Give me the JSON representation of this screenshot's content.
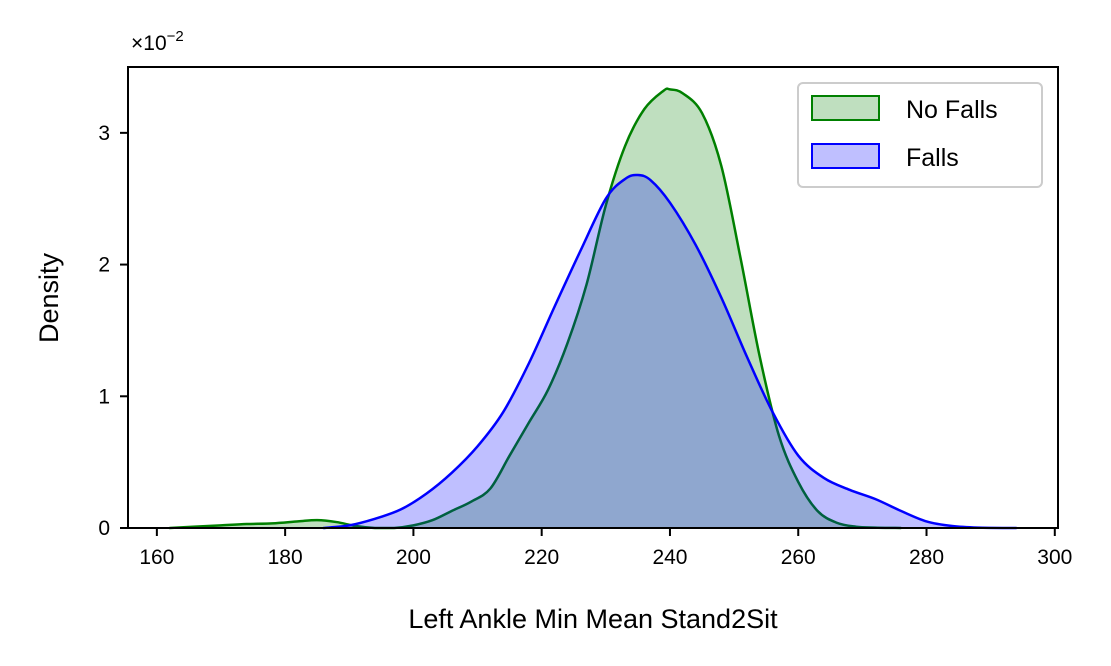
{
  "chart_data": {
    "type": "area",
    "xlabel": "Left Ankle Min Mean Stand2Sit",
    "ylabel": "Density",
    "y_multiplier_base": "×10",
    "y_multiplier_exp": "−2",
    "xlim": [
      155.5,
      300.5
    ],
    "ylim": [
      0,
      3.5
    ],
    "x_ticks": [
      160,
      180,
      200,
      220,
      240,
      260,
      280,
      300
    ],
    "y_ticks": [
      0,
      1,
      2,
      3
    ],
    "x_tick_labels": [
      "160",
      "180",
      "200",
      "220",
      "240",
      "260",
      "280",
      "300"
    ],
    "y_tick_labels": [
      "0",
      "1",
      "2",
      "3"
    ],
    "grid": false,
    "legend_position": "upper right",
    "series": [
      {
        "name": "No Falls",
        "line_color": "#008000",
        "fill_color": "#008000",
        "fill_opacity": 0.25,
        "x": [
          162,
          166,
          170,
          174,
          178,
          182,
          185,
          188,
          191,
          194,
          197,
          200,
          203,
          206,
          209,
          212,
          215,
          218,
          221,
          224,
          227,
          230,
          233,
          236,
          239,
          240,
          242,
          245,
          248,
          251,
          254,
          257,
          260,
          263,
          266,
          269,
          272,
          276
        ],
        "y": [
          0,
          0.01,
          0.02,
          0.03,
          0.035,
          0.05,
          0.06,
          0.045,
          0.015,
          0.0,
          0.0,
          0.02,
          0.06,
          0.13,
          0.2,
          0.3,
          0.55,
          0.8,
          1.05,
          1.4,
          1.85,
          2.45,
          2.9,
          3.18,
          3.32,
          3.33,
          3.3,
          3.15,
          2.75,
          2.05,
          1.3,
          0.7,
          0.35,
          0.13,
          0.04,
          0.01,
          0.003,
          0
        ]
      },
      {
        "name": "Falls",
        "line_color": "#0000ff",
        "fill_color": "#0000ff",
        "fill_opacity": 0.25,
        "x": [
          186,
          190,
          194,
          198,
          202,
          206,
          210,
          214,
          218,
          222,
          226,
          230,
          233,
          235,
          237,
          240,
          244,
          248,
          252,
          256,
          260,
          264,
          268,
          272,
          276,
          280,
          284,
          288,
          294
        ],
        "y": [
          0,
          0.02,
          0.07,
          0.14,
          0.26,
          0.42,
          0.62,
          0.88,
          1.25,
          1.68,
          2.1,
          2.5,
          2.65,
          2.68,
          2.64,
          2.47,
          2.15,
          1.75,
          1.3,
          0.88,
          0.55,
          0.38,
          0.29,
          0.22,
          0.13,
          0.05,
          0.015,
          0.003,
          0
        ]
      }
    ]
  }
}
